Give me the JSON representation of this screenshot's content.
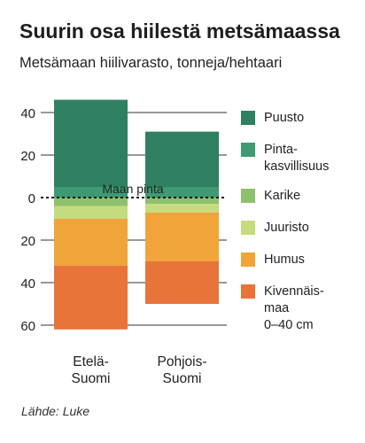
{
  "chart_data": {
    "type": "bar",
    "stacked": true,
    "title": "Suurin osa hiilestä metsämaassa",
    "subtitle": "Metsämaan hiilivarasto, tonneja/hehtaari",
    "source": "Lähde: Luke",
    "categories": [
      "Etelä-\nSuomi",
      "Pohjois-\nSuomi"
    ],
    "y_ticks": [
      {
        "value": 40,
        "label": "40"
      },
      {
        "value": 20,
        "label": "20"
      },
      {
        "value": 0,
        "label": "0"
      },
      {
        "value": -20,
        "label": "20"
      },
      {
        "value": -40,
        "label": "40"
      },
      {
        "value": -60,
        "label": "60"
      }
    ],
    "ylim": [
      -63,
      44
    ],
    "grid": true,
    "zero_line_label": "Maan pinta",
    "legend_position": "right",
    "above_ground": [
      {
        "name": "Pinta-\nkasvillisuus",
        "color": "#3e9a72",
        "values": [
          5,
          5
        ]
      },
      {
        "name": "Puusto",
        "color": "#2f8060",
        "values": [
          41,
          26
        ]
      }
    ],
    "below_ground": [
      {
        "name": "Karike",
        "color": "#8ec16e",
        "values": [
          4,
          3
        ]
      },
      {
        "name": "Juuristo",
        "color": "#c5dc7e",
        "values": [
          6,
          4
        ]
      },
      {
        "name": "Humus",
        "color": "#f0a43a",
        "values": [
          22,
          23
        ]
      },
      {
        "name": "Kivennäis-\nmaa\n0–40 cm",
        "color": "#e8743a",
        "values": [
          30,
          20
        ]
      }
    ],
    "legend": [
      {
        "name": "Puusto",
        "color": "#2f8060"
      },
      {
        "name": "Pinta-\nkasvillisuus",
        "color": "#3e9a72"
      },
      {
        "name": "Karike",
        "color": "#8ec16e"
      },
      {
        "name": "Juuristo",
        "color": "#c5dc7e"
      },
      {
        "name": "Humus",
        "color": "#f0a43a"
      },
      {
        "name": "Kivennäis-\nmaa\n0–40 cm",
        "color": "#e8743a"
      }
    ]
  }
}
